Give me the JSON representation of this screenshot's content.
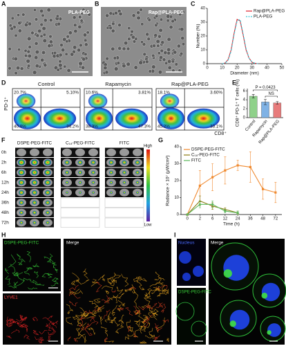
{
  "panels": {
    "letters": [
      "A",
      "B",
      "C",
      "D",
      "E",
      "F",
      "G",
      "H",
      "I"
    ],
    "A": {
      "label": "PLA-PEG"
    },
    "B": {
      "label": "Rap@PLA-PEG"
    },
    "D": {
      "y_label": "PD-1⁺",
      "x_label": "CD8⁺",
      "plots": [
        {
          "title": "Control",
          "quadrants": [
            "20.7%",
            "5.10%",
            "40.0%",
            "34.2%"
          ]
        },
        {
          "title": "Rapamycin",
          "quadrants": [
            "10.6%",
            "3.81%",
            "38.3%",
            "47.3%"
          ]
        },
        {
          "title": "Rap@PLA-PEG",
          "quadrants": [
            "18.1%",
            "3.60%",
            "45.2%",
            "33.1%"
          ]
        }
      ]
    },
    "F": {
      "columns": [
        "DSPE-PEG-FITC",
        "C₁₈-PEG-FITC",
        "FITC"
      ],
      "rows": [
        "0h",
        "2h",
        "6h",
        "12h",
        "24h",
        "36h",
        "48h",
        "72h"
      ],
      "scale": [
        "High",
        "Low"
      ]
    },
    "H": {
      "labels": [
        "DSPE-PEG-FITC",
        "LYVE1",
        "Merge"
      ]
    },
    "I": {
      "labels": [
        "Nucleus",
        "DSPE-PEG-FITC",
        "Merge"
      ]
    }
  },
  "chart_data": [
    {
      "type": "line",
      "x": [
        10,
        12,
        14,
        16,
        18,
        20,
        22,
        24,
        26,
        28,
        30,
        32,
        34
      ],
      "xlim": [
        0,
        50
      ],
      "xticks": [
        0,
        10,
        20,
        30,
        40,
        50
      ],
      "ylim": [
        0,
        40
      ],
      "yticks": [
        0,
        10,
        20,
        30,
        40
      ],
      "x_label": "Diameter (nm)",
      "y_label": "Number (%)",
      "legend": "upper right",
      "series": [
        {
          "name": "Rap@PLA-PEG",
          "color": "#e0202a",
          "dash": false,
          "values": [
            0,
            0.5,
            3,
            10,
            22,
            32,
            31,
            21,
            10,
            4,
            1,
            0.3,
            0
          ]
        },
        {
          "name": "PLA-PEG",
          "color": "#3cc8d8",
          "dash": true,
          "values": [
            0,
            0.4,
            2.5,
            9,
            21,
            31,
            32,
            22,
            11,
            4,
            1.2,
            0.3,
            0
          ]
        }
      ]
    },
    {
      "type": "bar",
      "categories": [
        "Control",
        "Rapamycin",
        "Rap@PLA-PEG"
      ],
      "values": [
        4.8,
        3.5,
        3.3
      ],
      "errors": [
        0.4,
        0.6,
        0.3
      ],
      "colors": [
        "#8fd18a",
        "#7fb2e5",
        "#e87c7c"
      ],
      "ylim": [
        0,
        6.5
      ],
      "yticks": [
        0,
        2,
        4,
        6
      ],
      "y_label": "CD8⁺ PD-1⁺ T cells (%)",
      "annotations": [
        "P = 0.0423",
        "NS"
      ]
    },
    {
      "type": "line",
      "categories": [
        "0",
        "2",
        "6",
        "12",
        "24",
        "36",
        "48",
        "72"
      ],
      "ylim": [
        0,
        40
      ],
      "yticks": [
        0,
        10,
        20,
        30,
        40
      ],
      "x_label": "Time (h)",
      "y_label": "Radiance × 10⁷ (μW/cm²)",
      "legend": "upper left",
      "series": [
        {
          "name": "DSPE-PEG-FITC",
          "color": "#f08a30",
          "dash": false,
          "marker": "square",
          "values": [
            0,
            17,
            22,
            26,
            29,
            28,
            15,
            13
          ],
          "errors": [
            0,
            9,
            8,
            8,
            3,
            9,
            6,
            6
          ]
        },
        {
          "name": "C₁₈-PEG-FITC",
          "color": "#8a7a10",
          "dash": false,
          "marker": "triangle",
          "values": [
            0,
            8,
            5,
            3,
            1,
            null,
            null,
            null
          ],
          "errors": [
            0,
            3,
            2,
            1,
            1,
            null,
            null,
            null
          ]
        },
        {
          "name": "FITC",
          "color": "#5cb85c",
          "dash": false,
          "marker": "circle",
          "values": [
            0,
            6,
            6,
            2,
            1,
            null,
            null,
            null
          ],
          "errors": [
            0,
            2,
            2,
            1,
            1,
            null,
            null,
            null
          ]
        }
      ]
    }
  ]
}
